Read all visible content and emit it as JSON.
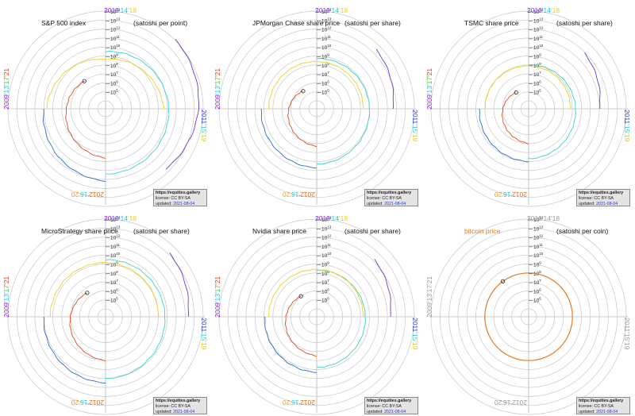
{
  "years": {
    "top": [
      "2010",
      "'14",
      "'18"
    ],
    "right": [
      "2011",
      "'15",
      "'19"
    ],
    "bottom": [
      "2012",
      "'16",
      "'20"
    ],
    "left": [
      "2009",
      "'13",
      "'17",
      "'21"
    ]
  },
  "info": {
    "site": "https://equities.gallery",
    "license": "license: CC BY-SA",
    "updated_label": "updated:",
    "updated": "2021-08-04"
  },
  "panels": [
    {
      "title": "S&P 500 index",
      "unit": "(satoshi per point)",
      "gray_years": false
    },
    {
      "title": "JPMorgan Chase share price",
      "unit": "(satoshi per share)",
      "gray_years": false
    },
    {
      "title": "TSMC share price",
      "unit": "(satoshi per share)",
      "gray_years": false
    },
    {
      "title": "MicroStrategy share price",
      "unit": "(satoshi per share)",
      "gray_years": false
    },
    {
      "title": "Nvidia share price",
      "unit": "(satoshi per share)",
      "gray_years": false
    },
    {
      "title": "bitcoin price",
      "unit": "(satoshi per coin)",
      "gray_years": true,
      "title_color": "#e07a1a"
    }
  ],
  "colors": {
    "2009": "#8a2be2",
    "2010": "#6a3ad6",
    "2011": "#3a44d8",
    "2012": "#2a6ad8",
    "2013": "#20c8e0",
    "2014": "#35d4d0",
    "2015": "#3cd85a",
    "2016": "#62d636",
    "2017": "#f0d020",
    "2018": "#f0b020",
    "2019": "#f07a1a",
    "2020": "#e84a1a",
    "2021": "#e0241e",
    "bitcoin": "#e67a24",
    "ring": "#c8c8c8"
  },
  "chart_data": [
    {
      "type": "line",
      "coordinate_system": "polar",
      "title": "S&P 500 index",
      "ylabel": "(satoshi per point)",
      "y_scale": "log",
      "y_tick_labels": [
        "10^5",
        "10^6",
        "10^7",
        "10^8",
        "10^9",
        "10^10",
        "10^11",
        "10^12",
        "10^13",
        "10^14"
      ],
      "ylim": [
        10000,
        100000000000000
      ],
      "angle_axis": "time (one revolution = 4 years, starting 2009 at left)",
      "series": [
        {
          "name": "2010",
          "x": [
            "2010-07",
            "2011-01",
            "2011-07"
          ],
          "y": [
            120000000000000.0,
            30000000000000.0,
            4000000000000.0
          ]
        },
        {
          "name": "2012",
          "x": [
            "2012-01",
            "2012-07",
            "2013-01"
          ],
          "y": [
            150000000000.0,
            40000000000.0,
            10000000000.0
          ]
        },
        {
          "name": "2014",
          "x": [
            "2014-01",
            "2015-01",
            "2016-01"
          ],
          "y": [
            3000000000.0,
            15000000000.0,
            25000000000.0
          ]
        },
        {
          "name": "2017",
          "x": [
            "2017-01",
            "2018-01",
            "2019-01"
          ],
          "y": [
            5000000000.0,
            400000000.0,
            4000000000.0
          ]
        },
        {
          "name": "2020",
          "x": [
            "2020-01",
            "2021-01",
            "2021-08"
          ],
          "y": [
            400000000.0,
            30000000.0,
            10000000.0
          ]
        }
      ]
    },
    {
      "type": "line",
      "coordinate_system": "polar",
      "title": "JPMorgan Chase share price",
      "ylabel": "(satoshi per share)",
      "y_scale": "log",
      "y_tick_labels": [
        "10^5",
        "10^6",
        "10^7",
        "10^8",
        "10^9",
        "10^10",
        "10^11",
        "10^12",
        "10^13",
        "10^14"
      ],
      "ylim": [
        10000,
        100000000000000
      ],
      "series": [
        {
          "name": "2010",
          "x": [
            "2010-07",
            "2011-01"
          ],
          "y": [
            3000000000000.0,
            400000000000.0
          ]
        },
        {
          "name": "2012",
          "x": [
            "2012-01",
            "2013-01"
          ],
          "y": [
            5000000000.0,
            2000000000.0
          ]
        },
        {
          "name": "2014",
          "x": [
            "2014-01",
            "2016-01"
          ],
          "y": [
            500000000.0,
            2000000000.0
          ]
        },
        {
          "name": "2017",
          "x": [
            "2017-01",
            "2019-01"
          ],
          "y": [
            300000000.0,
            200000000.0
          ]
        },
        {
          "name": "2020",
          "x": [
            "2020-01",
            "2021-08"
          ],
          "y": [
            20000000.0,
            400000.0
          ]
        }
      ]
    },
    {
      "type": "line",
      "coordinate_system": "polar",
      "title": "TSMC share price",
      "ylabel": "(satoshi per share)",
      "y_scale": "log",
      "y_tick_labels": [
        "10^5",
        "10^6",
        "10^7",
        "10^8",
        "10^9",
        "10^10",
        "10^11",
        "10^12",
        "10^13",
        "10^14"
      ],
      "ylim": [
        10000,
        100000000000000
      ],
      "series": [
        {
          "name": "2010",
          "x": [
            "2010-07",
            "2011-01"
          ],
          "y": [
            800000000000.0,
            100000000000.0
          ]
        },
        {
          "name": "2012",
          "x": [
            "2012-01",
            "2013-01"
          ],
          "y": [
            1000000000.0,
            400000000.0
          ]
        },
        {
          "name": "2014",
          "x": [
            "2014-01",
            "2016-01"
          ],
          "y": [
            100000000.0,
            500000000.0
          ]
        },
        {
          "name": "2017",
          "x": [
            "2017-01",
            "2019-01"
          ],
          "y": [
            100000000.0,
            60000000.0
          ]
        },
        {
          "name": "2020",
          "x": [
            "2020-01",
            "2021-08"
          ],
          "y": [
            10000000.0,
            250000.0
          ]
        }
      ]
    },
    {
      "type": "line",
      "coordinate_system": "polar",
      "title": "MicroStrategy share price",
      "ylabel": "(satoshi per share)",
      "y_scale": "log",
      "y_tick_labels": [
        "10^5",
        "10^6",
        "10^7",
        "10^8",
        "10^9",
        "10^10",
        "10^11",
        "10^12",
        "10^13",
        "10^14"
      ],
      "ylim": [
        10000,
        100000000000000
      ],
      "series": [
        {
          "name": "2010",
          "x": [
            "2010-07",
            "2011-01"
          ],
          "y": [
            15000000000000.0,
            2000000000000.0
          ]
        },
        {
          "name": "2012",
          "x": [
            "2012-01",
            "2013-01"
          ],
          "y": [
            30000000000.0,
            10000000000.0
          ]
        },
        {
          "name": "2014",
          "x": [
            "2014-01",
            "2016-01"
          ],
          "y": [
            3000000000.0,
            10000000000.0
          ]
        },
        {
          "name": "2017",
          "x": [
            "2017-01",
            "2019-01"
          ],
          "y": [
            2000000000.0,
            1000000000.0
          ]
        },
        {
          "name": "2020",
          "x": [
            "2020-01",
            "2021-08"
          ],
          "y": [
            100000000.0,
            3000000.0
          ]
        }
      ]
    },
    {
      "type": "line",
      "coordinate_system": "polar",
      "title": "Nvidia share price",
      "ylabel": "(satoshi per share)",
      "y_scale": "log",
      "y_tick_labels": [
        "10^5",
        "10^6",
        "10^7",
        "10^8",
        "10^9",
        "10^10",
        "10^11",
        "10^12",
        "10^13",
        "10^14"
      ],
      "ylim": [
        10000,
        100000000000000
      ],
      "series": [
        {
          "name": "2010",
          "x": [
            "2010-07",
            "2011-01"
          ],
          "y": [
            1500000000000.0,
            200000000000.0
          ]
        },
        {
          "name": "2012",
          "x": [
            "2012-01",
            "2013-01"
          ],
          "y": [
            2000000000.0,
            800000000.0
          ]
        },
        {
          "name": "2014",
          "x": [
            "2014-01",
            "2016-01"
          ],
          "y": [
            200000000.0,
            600000000.0
          ]
        },
        {
          "name": "2017",
          "x": [
            "2017-01",
            "2019-01"
          ],
          "y": [
            300000000.0,
            200000000.0
          ]
        },
        {
          "name": "2020",
          "x": [
            "2020-01",
            "2021-08"
          ],
          "y": [
            30000000.0,
            1000000.0
          ]
        }
      ]
    },
    {
      "type": "line",
      "coordinate_system": "polar",
      "title": "bitcoin price",
      "ylabel": "(satoshi per coin)",
      "y_scale": "log",
      "y_tick_labels": [
        "10^5",
        "10^6",
        "10^7",
        "10^8",
        "10^9",
        "10^10",
        "10^11",
        "10^12",
        "10^13",
        "10^14"
      ],
      "ylim": [
        10000,
        100000000000000
      ],
      "series": [
        {
          "name": "bitcoin",
          "x": [
            "2009-01",
            "2021-08"
          ],
          "y": [
            100000000,
            100000000
          ]
        }
      ]
    }
  ]
}
